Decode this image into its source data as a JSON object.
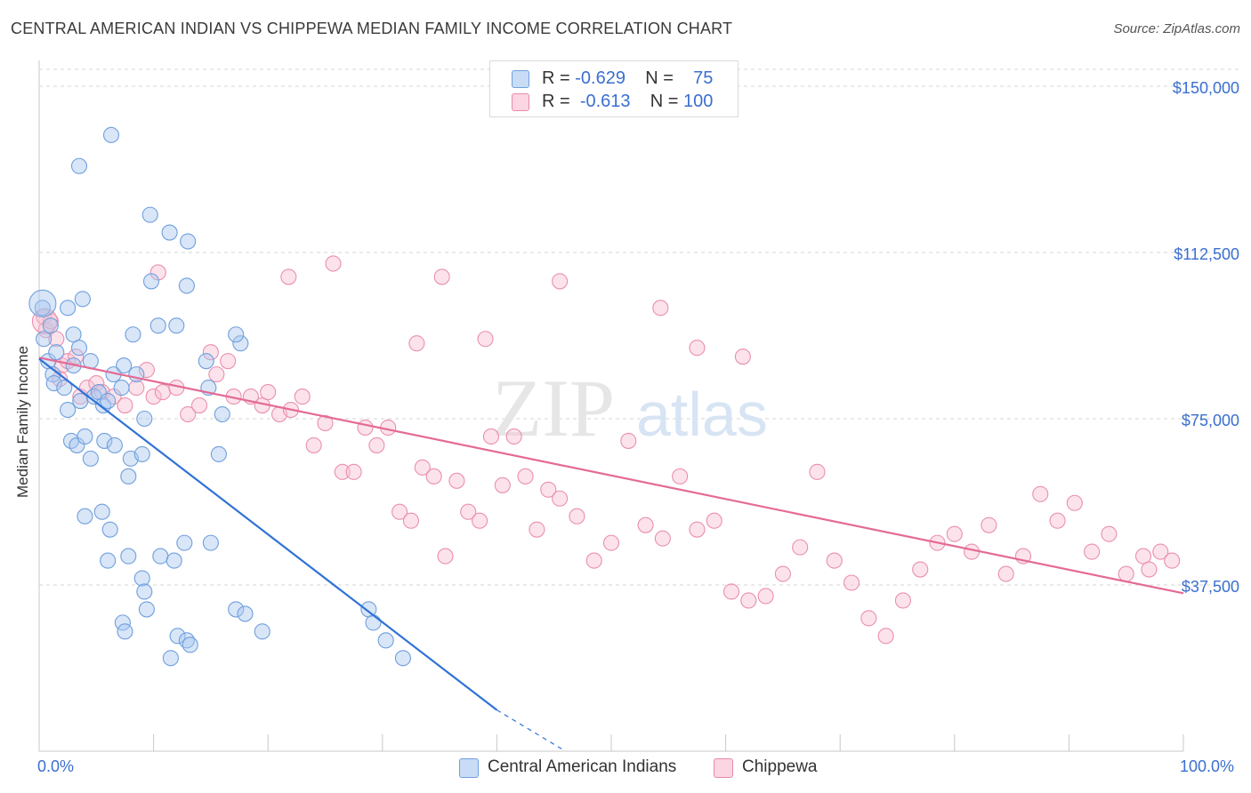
{
  "title": "CENTRAL AMERICAN INDIAN VS CHIPPEWA MEDIAN FAMILY INCOME CORRELATION CHART",
  "source": "Source: ZipAtlas.com",
  "watermark": {
    "zip": "ZIP",
    "atlas": "atlas"
  },
  "legend_top": {
    "rows": [
      {
        "r_label": "R =",
        "r_value": "-0.629",
        "n_label": "N =",
        "n_value": "75",
        "color": "#a9c8f0",
        "border": "#6f9fdd"
      },
      {
        "r_label": "R =",
        "r_value": "-0.613",
        "n_label": "N =",
        "n_value": "100",
        "color": "#f8c2d2",
        "border": "#e88aa7"
      }
    ]
  },
  "legend_bottom": [
    {
      "label": "Central American Indians",
      "color": "#a9c8f0",
      "border": "#6f9fdd"
    },
    {
      "label": "Chippewa",
      "color": "#f8c2d2",
      "border": "#e88aa7"
    }
  ],
  "x_axis": {
    "min_label": "0.0%",
    "max_label": "100.0%"
  },
  "colors": {
    "blue_line": "#2f72d6",
    "pink_line": "#e46a95",
    "blue_point": "#6f9fdd",
    "pink_point": "#ea8fad",
    "axis_text": "#3a6fd0",
    "grid": "#d6d6d6"
  },
  "chart_data": {
    "type": "scatter",
    "xlabel": "",
    "ylabel": "Median Family Income",
    "xlim": [
      0,
      100
    ],
    "ylim": [
      0,
      155000
    ],
    "y_ticks": [
      {
        "value": 37500,
        "label": "$37,500"
      },
      {
        "value": 75000,
        "label": "$75,000"
      },
      {
        "value": 112500,
        "label": "$112,500"
      },
      {
        "value": 150000,
        "label": "$150,000"
      }
    ],
    "grid": true,
    "legend_position": "top-center",
    "series": [
      {
        "name": "Central American Indians",
        "points": [
          [
            0.3,
            100000
          ],
          [
            0.4,
            93000
          ],
          [
            0.8,
            88000
          ],
          [
            1.2,
            85000
          ],
          [
            1.5,
            90000
          ],
          [
            1.3,
            83000
          ],
          [
            1.0,
            96000
          ],
          [
            2.2,
            82000
          ],
          [
            2.5,
            77000
          ],
          [
            3.0,
            87000
          ],
          [
            3.6,
            79000
          ],
          [
            2.8,
            70000
          ],
          [
            3.3,
            69000
          ],
          [
            4.0,
            71000
          ],
          [
            2.5,
            100000
          ],
          [
            3.0,
            94000
          ],
          [
            3.8,
            102000
          ],
          [
            3.5,
            91000
          ],
          [
            4.5,
            88000
          ],
          [
            4.8,
            80000
          ],
          [
            5.2,
            81000
          ],
          [
            5.6,
            78000
          ],
          [
            4.5,
            66000
          ],
          [
            6.0,
            79000
          ],
          [
            6.5,
            85000
          ],
          [
            7.2,
            82000
          ],
          [
            5.7,
            70000
          ],
          [
            7.4,
            87000
          ],
          [
            6.6,
            69000
          ],
          [
            7.8,
            62000
          ],
          [
            8.0,
            66000
          ],
          [
            8.5,
            85000
          ],
          [
            9.0,
            67000
          ],
          [
            9.2,
            75000
          ],
          [
            3.5,
            132000
          ],
          [
            6.3,
            139000
          ],
          [
            9.7,
            121000
          ],
          [
            11.4,
            117000
          ],
          [
            9.8,
            106000
          ],
          [
            12.9,
            105000
          ],
          [
            12.0,
            96000
          ],
          [
            10.4,
            96000
          ],
          [
            8.2,
            94000
          ],
          [
            13.0,
            115000
          ],
          [
            14.6,
            88000
          ],
          [
            14.8,
            82000
          ],
          [
            15.7,
            67000
          ],
          [
            16.0,
            76000
          ],
          [
            17.6,
            92000
          ],
          [
            17.2,
            94000
          ],
          [
            5.5,
            54000
          ],
          [
            4.0,
            53000
          ],
          [
            6.2,
            50000
          ],
          [
            6.0,
            43000
          ],
          [
            7.8,
            44000
          ],
          [
            10.6,
            44000
          ],
          [
            11.8,
            43000
          ],
          [
            12.7,
            47000
          ],
          [
            15.0,
            47000
          ],
          [
            9.0,
            39000
          ],
          [
            9.2,
            36000
          ],
          [
            9.4,
            32000
          ],
          [
            7.3,
            29000
          ],
          [
            7.5,
            27000
          ],
          [
            12.1,
            26000
          ],
          [
            12.9,
            25000
          ],
          [
            13.2,
            24000
          ],
          [
            11.5,
            21000
          ],
          [
            17.2,
            32000
          ],
          [
            18.0,
            31000
          ],
          [
            19.5,
            27000
          ],
          [
            28.8,
            32000
          ],
          [
            29.2,
            29000
          ],
          [
            30.3,
            25000
          ],
          [
            31.8,
            21000
          ]
        ]
      },
      {
        "name": "Chippewa",
        "points": [
          [
            0.4,
            98000
          ],
          [
            0.6,
            95000
          ],
          [
            1.0,
            97000
          ],
          [
            1.5,
            93000
          ],
          [
            2.0,
            87000
          ],
          [
            2.5,
            88000
          ],
          [
            3.2,
            89000
          ],
          [
            1.8,
            84000
          ],
          [
            3.6,
            80000
          ],
          [
            4.2,
            82000
          ],
          [
            5.0,
            83000
          ],
          [
            5.5,
            81000
          ],
          [
            6.5,
            80000
          ],
          [
            7.5,
            78000
          ],
          [
            8.5,
            82000
          ],
          [
            9.4,
            86000
          ],
          [
            10.0,
            80000
          ],
          [
            10.8,
            81000
          ],
          [
            12.0,
            82000
          ],
          [
            13.0,
            76000
          ],
          [
            14.0,
            78000
          ],
          [
            15.5,
            85000
          ],
          [
            15.0,
            90000
          ],
          [
            16.5,
            88000
          ],
          [
            17.0,
            80000
          ],
          [
            18.5,
            80000
          ],
          [
            19.5,
            78000
          ],
          [
            20.0,
            81000
          ],
          [
            21.0,
            76000
          ],
          [
            22.0,
            77000
          ],
          [
            23.0,
            80000
          ],
          [
            24.0,
            69000
          ],
          [
            25.0,
            74000
          ],
          [
            26.5,
            63000
          ],
          [
            27.5,
            63000
          ],
          [
            28.5,
            73000
          ],
          [
            29.5,
            69000
          ],
          [
            30.5,
            73000
          ],
          [
            31.5,
            54000
          ],
          [
            32.5,
            52000
          ],
          [
            33.5,
            64000
          ],
          [
            34.5,
            62000
          ],
          [
            35.5,
            44000
          ],
          [
            36.5,
            61000
          ],
          [
            37.5,
            54000
          ],
          [
            38.5,
            52000
          ],
          [
            39.5,
            71000
          ],
          [
            40.5,
            60000
          ],
          [
            41.5,
            71000
          ],
          [
            42.5,
            62000
          ],
          [
            43.5,
            50000
          ],
          [
            44.5,
            59000
          ],
          [
            45.5,
            57000
          ],
          [
            47.0,
            53000
          ],
          [
            48.5,
            43000
          ],
          [
            50.0,
            47000
          ],
          [
            51.5,
            70000
          ],
          [
            53.0,
            51000
          ],
          [
            54.5,
            48000
          ],
          [
            56.0,
            62000
          ],
          [
            57.5,
            50000
          ],
          [
            59.0,
            52000
          ],
          [
            60.5,
            36000
          ],
          [
            62.0,
            34000
          ],
          [
            63.5,
            35000
          ],
          [
            65.0,
            40000
          ],
          [
            66.5,
            46000
          ],
          [
            68.0,
            63000
          ],
          [
            69.5,
            43000
          ],
          [
            71.0,
            38000
          ],
          [
            72.5,
            30000
          ],
          [
            74.0,
            26000
          ],
          [
            75.5,
            34000
          ],
          [
            77.0,
            41000
          ],
          [
            78.5,
            47000
          ],
          [
            80.0,
            49000
          ],
          [
            81.5,
            45000
          ],
          [
            83.0,
            51000
          ],
          [
            84.5,
            40000
          ],
          [
            86.0,
            44000
          ],
          [
            87.5,
            58000
          ],
          [
            89.0,
            52000
          ],
          [
            90.5,
            56000
          ],
          [
            92.0,
            45000
          ],
          [
            93.5,
            49000
          ],
          [
            95.0,
            40000
          ],
          [
            96.5,
            44000
          ],
          [
            98.0,
            45000
          ],
          [
            99.0,
            43000
          ],
          [
            97.0,
            41000
          ],
          [
            25.7,
            110000
          ],
          [
            21.8,
            107000
          ],
          [
            45.5,
            106000
          ],
          [
            35.2,
            107000
          ],
          [
            54.3,
            100000
          ],
          [
            33.0,
            92000
          ],
          [
            57.5,
            91000
          ],
          [
            61.5,
            89000
          ],
          [
            39.0,
            93000
          ],
          [
            10.4,
            108000
          ]
        ]
      }
    ]
  }
}
